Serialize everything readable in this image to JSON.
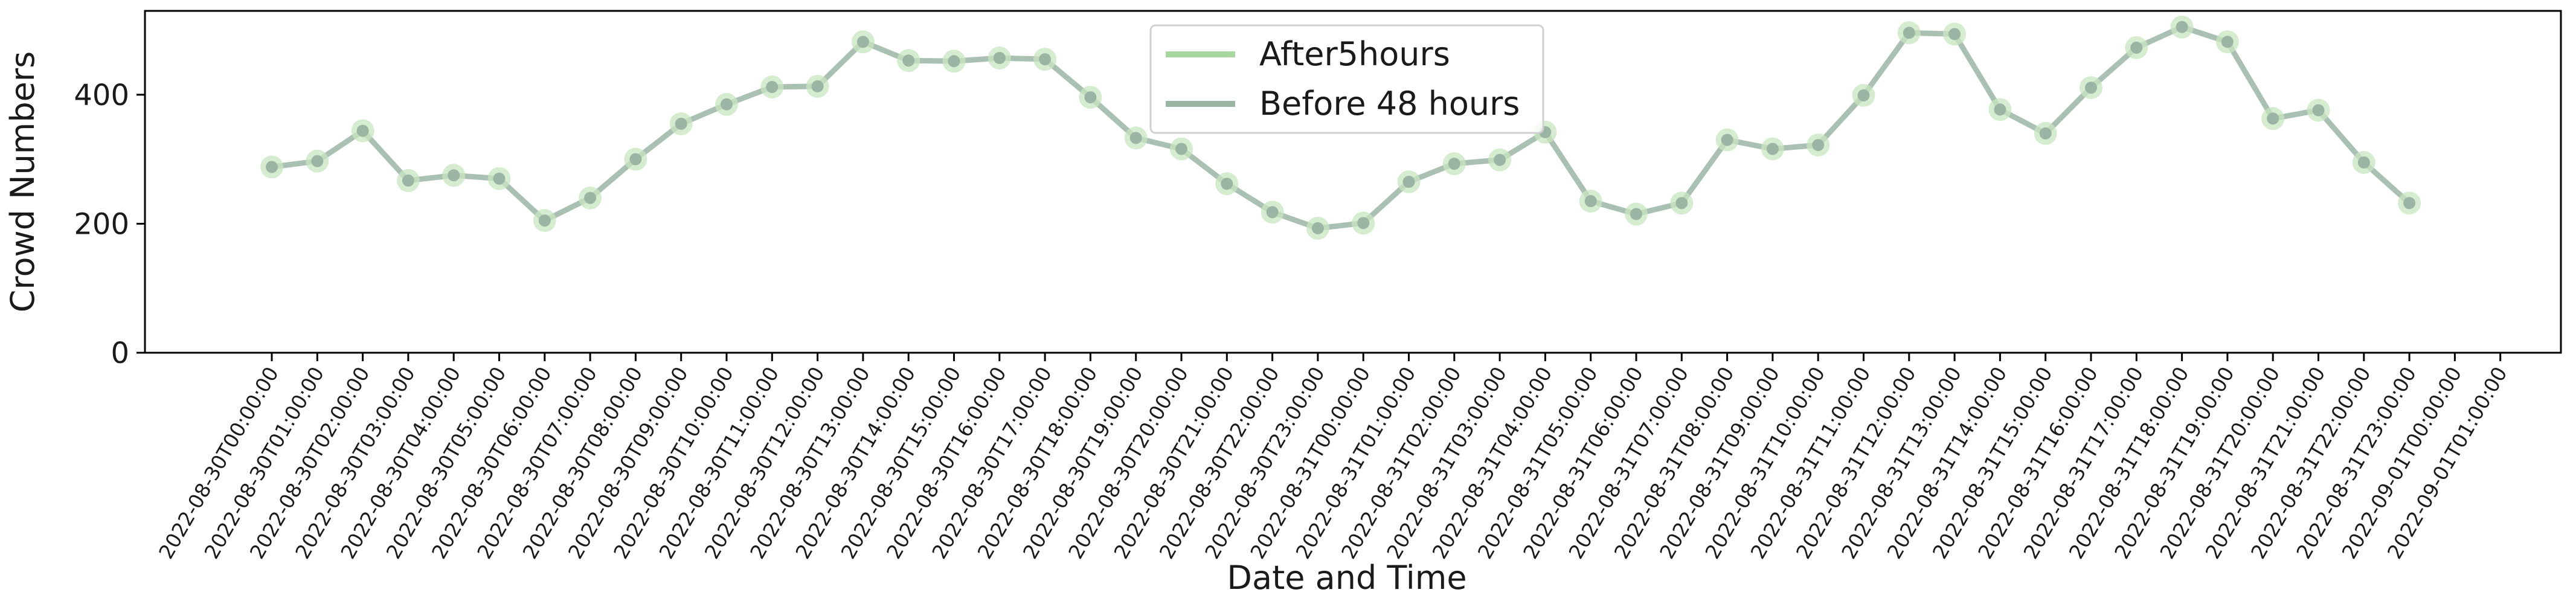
{
  "chart_data": {
    "type": "line",
    "xlabel": "Date and Time",
    "ylabel": "Crowd Numbers",
    "y_ticks": [
      0,
      200,
      400
    ],
    "ylim": [
      0,
      530
    ],
    "grid": false,
    "legend_position": "top-center",
    "legend": [
      {
        "label": "After5hours",
        "color": "#a8d8a0"
      },
      {
        "label": "Before 48 hours",
        "color": "#9bb5a5"
      }
    ],
    "categories": [
      "2022-08-30T00:00:00",
      "2022-08-30T01:00:00",
      "2022-08-30T02:00:00",
      "2022-08-30T03:00:00",
      "2022-08-30T04:00:00",
      "2022-08-30T05:00:00",
      "2022-08-30T06:00:00",
      "2022-08-30T07:00:00",
      "2022-08-30T08:00:00",
      "2022-08-30T09:00:00",
      "2022-08-30T10:00:00",
      "2022-08-30T11:00:00",
      "2022-08-30T12:00:00",
      "2022-08-30T13:00:00",
      "2022-08-30T14:00:00",
      "2022-08-30T15:00:00",
      "2022-08-30T16:00:00",
      "2022-08-30T17:00:00",
      "2022-08-30T18:00:00",
      "2022-08-30T19:00:00",
      "2022-08-30T20:00:00",
      "2022-08-30T21:00:00",
      "2022-08-30T22:00:00",
      "2022-08-30T23:00:00",
      "2022-08-31T00:00:00",
      "2022-08-31T01:00:00",
      "2022-08-31T02:00:00",
      "2022-08-31T03:00:00",
      "2022-08-31T04:00:00",
      "2022-08-31T05:00:00",
      "2022-08-31T06:00:00",
      "2022-08-31T07:00:00",
      "2022-08-31T08:00:00",
      "2022-08-31T09:00:00",
      "2022-08-31T10:00:00",
      "2022-08-31T11:00:00",
      "2022-08-31T12:00:00",
      "2022-08-31T13:00:00",
      "2022-08-31T14:00:00",
      "2022-08-31T15:00:00",
      "2022-08-31T16:00:00",
      "2022-08-31T17:00:00",
      "2022-08-31T18:00:00",
      "2022-08-31T19:00:00",
      "2022-08-31T20:00:00",
      "2022-08-31T21:00:00",
      "2022-08-31T22:00:00",
      "2022-08-31T23:00:00",
      "2022-09-01T00:00:00",
      "2022-09-01T01:00:00"
    ],
    "series": [
      {
        "name": "Before 48 hours",
        "color": "#9bb5a5",
        "marker_color": "#c8e6c0",
        "values": [
          288,
          297,
          344,
          267,
          275,
          270,
          205,
          240,
          300,
          355,
          385,
          412,
          413,
          482,
          453,
          452,
          457,
          455,
          396,
          333,
          316,
          262,
          218,
          193,
          201,
          265,
          293,
          299,
          342,
          235,
          215,
          232,
          330,
          316,
          322,
          399,
          496,
          494,
          377,
          340,
          411,
          473,
          505,
          482,
          363,
          376,
          295,
          232,
          null,
          null
        ]
      }
    ]
  }
}
